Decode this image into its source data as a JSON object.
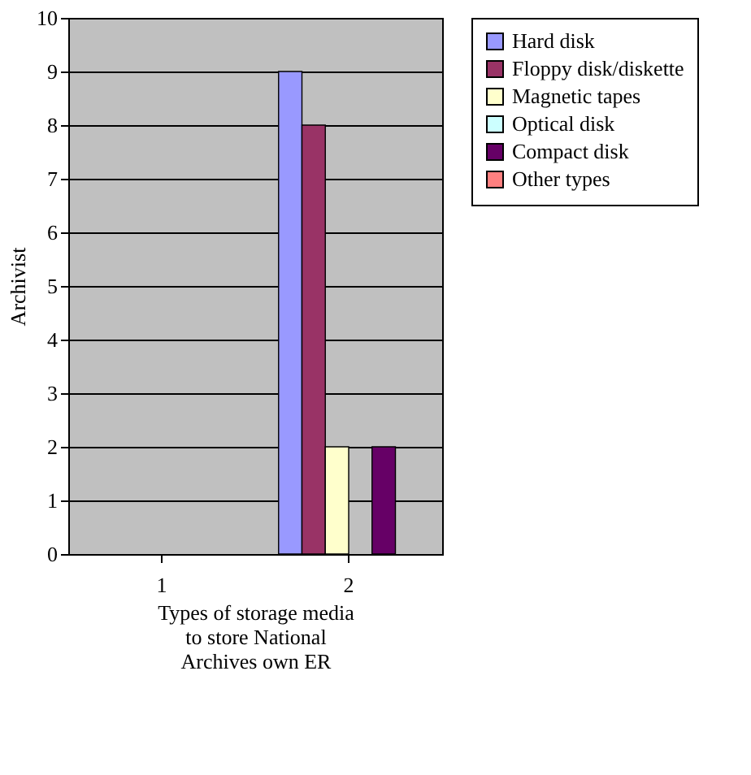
{
  "chart_data": {
    "type": "bar",
    "xlabel": "Types of storage media to store National Archives own ER",
    "ylabel": "Archivist",
    "categories": [
      "1",
      "2"
    ],
    "series": [
      {
        "name": "Hard disk",
        "color": "#9999ff",
        "values": [
          0,
          9
        ]
      },
      {
        "name": "Floppy disk/diskette",
        "color": "#993366",
        "values": [
          0,
          8
        ]
      },
      {
        "name": "Magnetic tapes",
        "color": "#ffffcc",
        "values": [
          0,
          2
        ]
      },
      {
        "name": "Optical disk",
        "color": "#ccffff",
        "values": [
          0,
          0
        ]
      },
      {
        "name": "Compact disk",
        "color": "#660066",
        "values": [
          0,
          2
        ]
      },
      {
        "name": "Other types",
        "color": "#ff8080",
        "values": [
          0,
          0
        ]
      }
    ],
    "ylim": [
      0,
      10
    ],
    "yticks": [
      0,
      1,
      2,
      3,
      4,
      5,
      6,
      7,
      8,
      9,
      10
    ],
    "grid": "y",
    "legend": "right"
  }
}
